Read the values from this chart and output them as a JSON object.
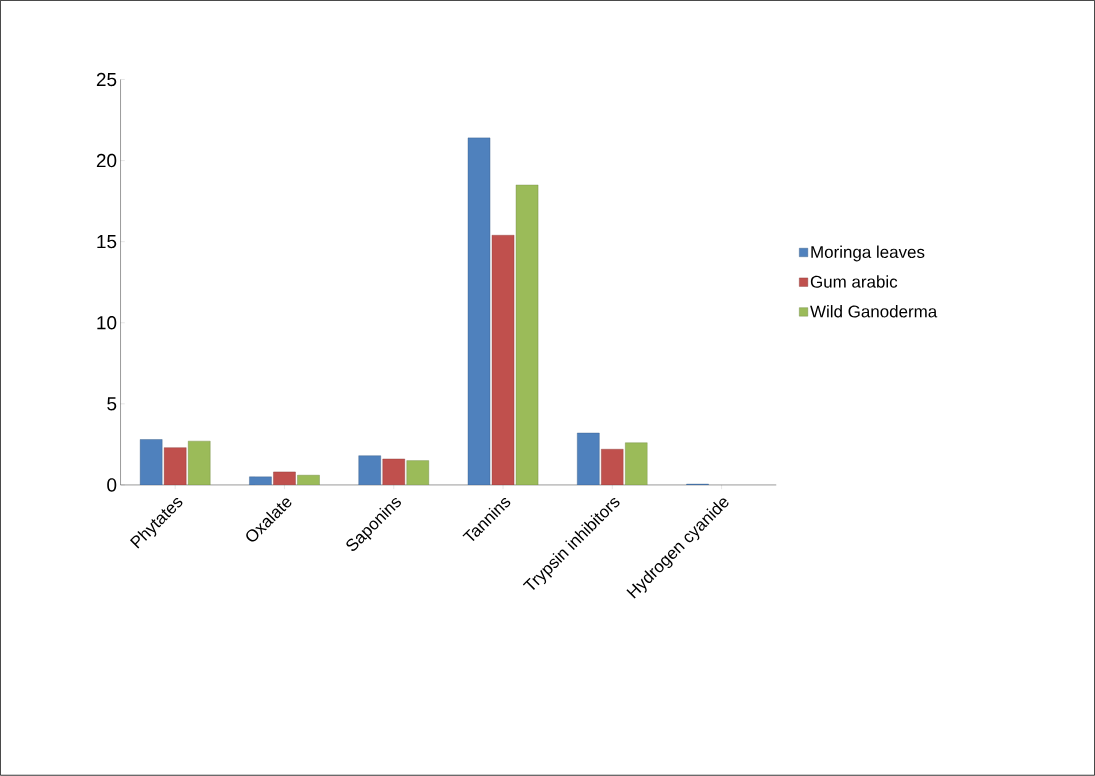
{
  "chart_data": {
    "type": "bar",
    "categories": [
      "Phytates",
      "Oxalate",
      "Saponins",
      "Tannins",
      "Trypsin inhibitors",
      "Hydrogen cyanide"
    ],
    "series": [
      {
        "name": "Moringa leaves",
        "color": "#4f81bd",
        "values": [
          2.8,
          0.5,
          1.8,
          21.4,
          3.2,
          0.05
        ]
      },
      {
        "name": "Gum arabic",
        "color": "#c0504d",
        "values": [
          2.3,
          0.8,
          1.6,
          15.4,
          2.2,
          null
        ]
      },
      {
        "name": "Wild Ganoderma",
        "color": "#9bbb59",
        "values": [
          2.7,
          0.6,
          1.5,
          18.5,
          2.6,
          null
        ]
      }
    ],
    "ylim": [
      0,
      25
    ],
    "yticks": [
      0,
      5,
      10,
      15,
      20,
      25
    ],
    "legend": "right",
    "grid": false
  }
}
